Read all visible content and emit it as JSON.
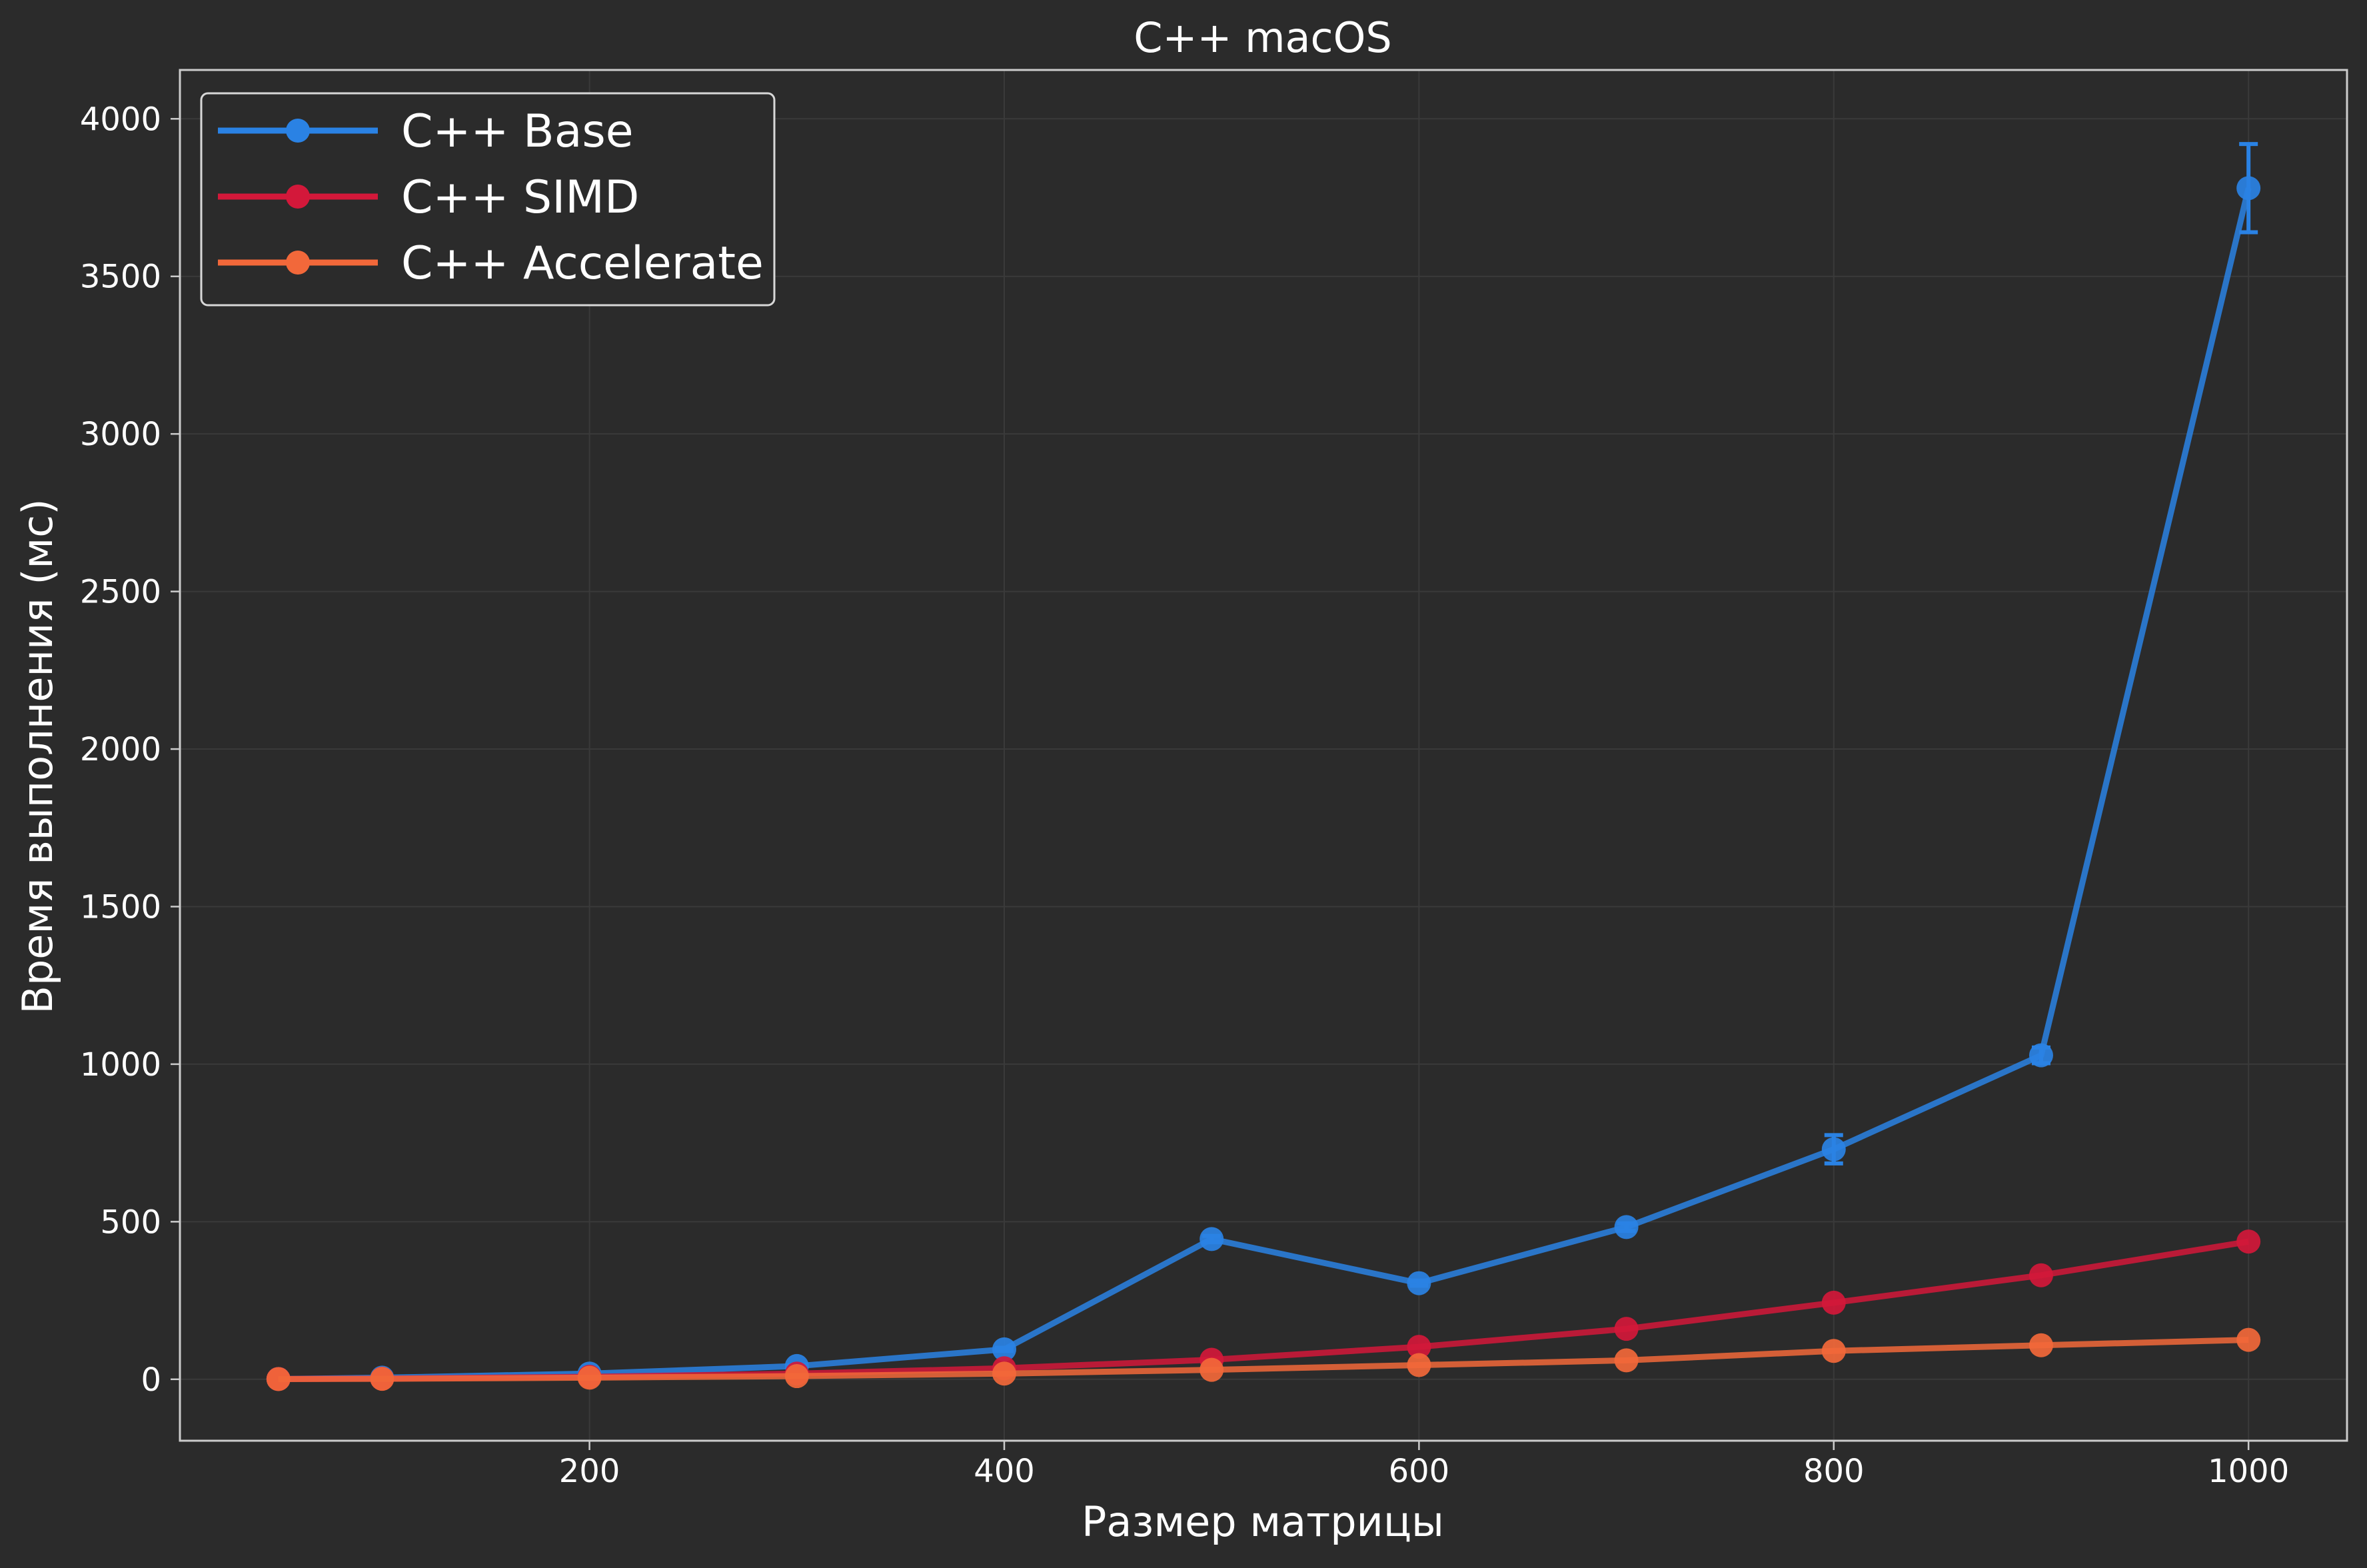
{
  "chart_data": {
    "type": "line",
    "title": "C++ macOS",
    "xlabel": "Размер матрицы",
    "ylabel": "Время выполнения (мс)",
    "xlim": [
      2.5,
      1047.5
    ],
    "ylim": [
      -195,
      4155
    ],
    "xticks": [
      200,
      400,
      600,
      800,
      1000
    ],
    "yticks": [
      0,
      500,
      1000,
      1500,
      2000,
      2500,
      3000,
      3500,
      4000
    ],
    "grid": true,
    "legend_position": "top-left",
    "x": [
      50,
      100,
      200,
      300,
      400,
      500,
      600,
      700,
      800,
      900,
      1000
    ],
    "series": [
      {
        "name": "C++ Base",
        "color": "#2a82e4",
        "values": [
          1,
          5,
          18,
          42,
          95,
          445,
          305,
          483,
          730,
          1028,
          3780
        ],
        "errors": [
          0,
          0,
          2,
          3,
          5,
          10,
          8,
          12,
          45,
          25,
          140
        ]
      },
      {
        "name": "C++ SIMD",
        "color": "#d3183a",
        "values": [
          1,
          2,
          8,
          18,
          35,
          62,
          103,
          160,
          243,
          330,
          437
        ]
      },
      {
        "name": "C++ Accelerate",
        "color": "#f2683a",
        "values": [
          0.5,
          1.5,
          5,
          10,
          18,
          30,
          45,
          60,
          90,
          108,
          125
        ]
      }
    ]
  }
}
